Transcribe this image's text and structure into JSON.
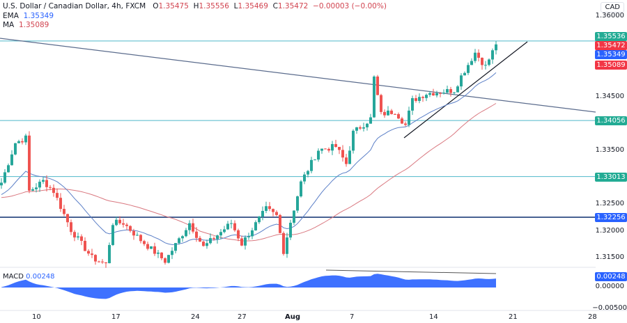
{
  "header": {
    "symbol": "U.S. Dollar / Canadian Dollar, 4h, FXCM",
    "o_label": "O",
    "o": "1.35475",
    "h_label": "H",
    "h": "1.35556",
    "l_label": "L",
    "l": "1.35469",
    "c_label": "C",
    "c": "1.35472",
    "change": "−0.00003 (−0.00%)",
    "ema_label": "EMA",
    "ema": "1.35349",
    "ma_label": "MA",
    "ma": "1.35089",
    "macd_label": "MACD",
    "macd": "0.00248"
  },
  "currency": "CAD",
  "colors": {
    "up": "#26a69a",
    "down": "#ef5350",
    "ema": "#5b7fc7",
    "ma": "#d9777f",
    "level": "#4fb8c9",
    "support": "#1e3f7a",
    "macd": "#2962ff"
  },
  "price_axis": [
    "1.36000",
    "1.34500",
    "1.33500",
    "1.32500",
    "1.32000",
    "1.31500"
  ],
  "price_tags": [
    {
      "value": "1.35536",
      "color": "#22ab94"
    },
    {
      "value": "1.35472",
      "color": "#f23645"
    },
    {
      "value": "1.35349",
      "color": "#2962ff"
    },
    {
      "value": "1.35089",
      "color": "#f23645"
    },
    {
      "value": "1.34056",
      "color": "#22ab94"
    },
    {
      "value": "1.33013",
      "color": "#22ab94"
    },
    {
      "value": "1.32256",
      "color": "#2962ff"
    }
  ],
  "macd_axis": {
    "tag": "0.00248",
    "zero": "0.00000",
    "neg": "−0.00500"
  },
  "time_axis": [
    "10",
    "17",
    "24",
    "27",
    "Aug",
    "7",
    "14",
    "21",
    "28"
  ],
  "chart_data": {
    "type": "candlestick",
    "symbol": "USDCAD",
    "timeframe": "4h",
    "horizontal_levels": [
      1.35536,
      1.34056,
      1.33013,
      1.32256
    ],
    "ylim": [
      1.312,
      1.362
    ],
    "close_waypoints": [
      [
        0,
        1.329
      ],
      [
        4,
        1.3364
      ],
      [
        7,
        1.3373
      ],
      [
        8,
        1.3274
      ],
      [
        12,
        1.3293
      ],
      [
        15,
        1.3274
      ],
      [
        20,
        1.3202
      ],
      [
        26,
        1.315
      ],
      [
        30,
        1.3138
      ],
      [
        32,
        1.3215
      ],
      [
        35,
        1.3215
      ],
      [
        40,
        1.3183
      ],
      [
        47,
        1.3144
      ],
      [
        54,
        1.3215
      ],
      [
        58,
        1.317
      ],
      [
        66,
        1.3215
      ],
      [
        69,
        1.3176
      ],
      [
        76,
        1.3241
      ],
      [
        79,
        1.3228
      ],
      [
        81,
        1.3163
      ],
      [
        83,
        1.3217
      ],
      [
        86,
        1.329
      ],
      [
        91,
        1.3351
      ],
      [
        96,
        1.3357
      ],
      [
        99,
        1.3325
      ],
      [
        101,
        1.3383
      ],
      [
        106,
        1.3409
      ],
      [
        107,
        1.3485
      ],
      [
        109,
        1.3417
      ],
      [
        113,
        1.3423
      ],
      [
        116,
        1.3397
      ],
      [
        118,
        1.3443
      ],
      [
        122,
        1.3456
      ],
      [
        130,
        1.3462
      ],
      [
        132,
        1.3488
      ],
      [
        136,
        1.3532
      ],
      [
        139,
        1.3506
      ],
      [
        142,
        1.3547
      ]
    ],
    "ema_last": 1.35349,
    "ma_last": 1.35089,
    "macd_last": 0.00248,
    "time_labels": [
      "10",
      "17",
      "24",
      "27",
      "Aug",
      "7",
      "14",
      "21",
      "28"
    ]
  }
}
